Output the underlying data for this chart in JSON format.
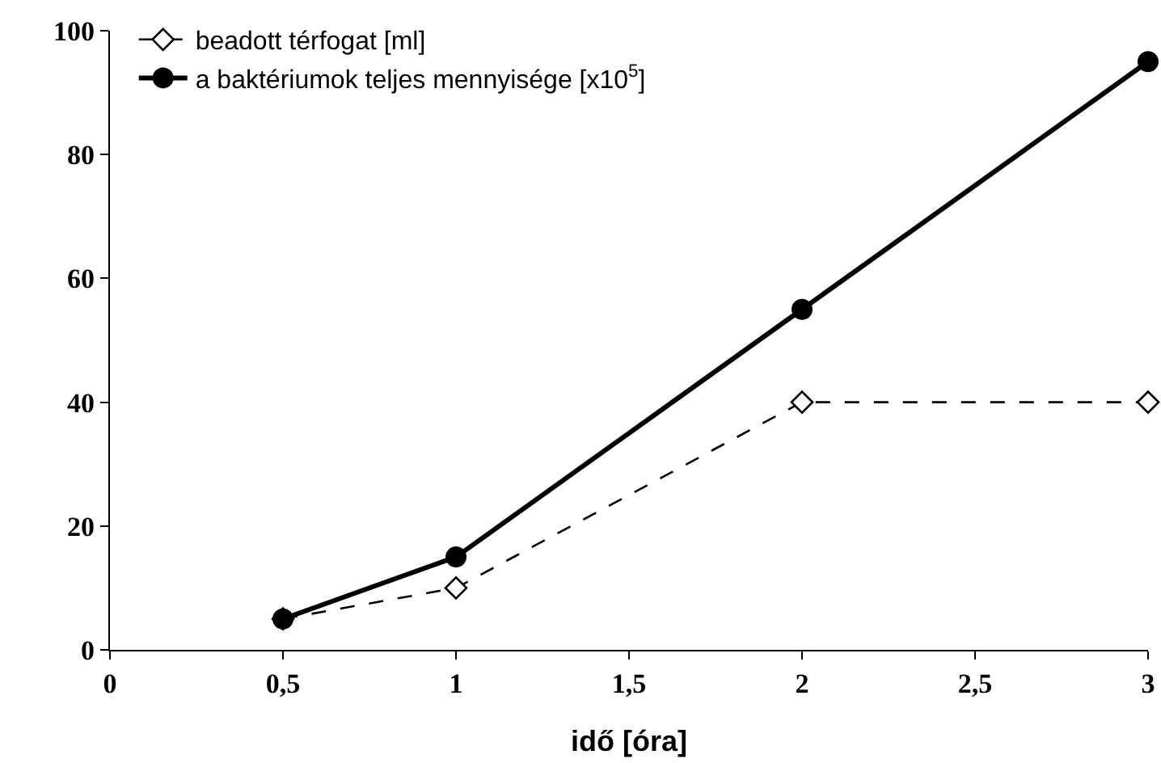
{
  "chart_data": {
    "type": "line",
    "xlabel": "idő [óra]",
    "x": [
      0.5,
      1,
      2,
      3
    ],
    "series": [
      {
        "name": "beadott térfogat [ml]",
        "color": "#000000",
        "values": [
          5,
          10,
          40,
          40
        ],
        "marker": "diamond",
        "line_style": "dashed"
      },
      {
        "name": "a baktériumok teljes mennyisége [x10$^{5}$]",
        "color": "#000000",
        "values": [
          5,
          15,
          55,
          95
        ],
        "marker": "circle",
        "line_style": "solid"
      }
    ],
    "xlim": [
      0,
      3
    ],
    "xticks": [
      0,
      {
        "value": 0.5,
        "label": "0,5"
      },
      1,
      {
        "value": 1.5,
        "label": "1,5"
      },
      2,
      {
        "value": 2.5,
        "label": "2,5"
      },
      3
    ],
    "ylim": [
      0,
      100
    ],
    "yticks": [
      0,
      20,
      40,
      60,
      80,
      100
    ],
    "grid": false,
    "legend": "top left"
  }
}
